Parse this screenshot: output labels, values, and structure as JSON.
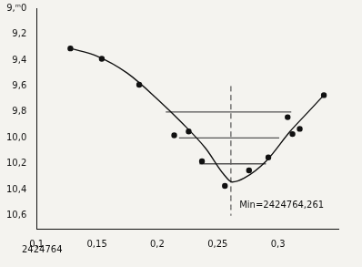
{
  "chart_data": {
    "type": "scatter",
    "xlabel": "2424764",
    "xlim": [
      0.1,
      0.35
    ],
    "xticks": [
      {
        "value": 0.1,
        "label": "0,1"
      },
      {
        "value": 0.15,
        "label": "0,15"
      },
      {
        "value": 0.2,
        "label": "0,2"
      },
      {
        "value": 0.25,
        "label": "0,25"
      },
      {
        "value": 0.3,
        "label": "0,3"
      }
    ],
    "ylim": [
      10.7,
      9.0
    ],
    "yticks": [
      {
        "value": 9.0,
        "label": "9,ᵐ0"
      },
      {
        "value": 9.2,
        "label": "9,2"
      },
      {
        "value": 9.4,
        "label": "9,4"
      },
      {
        "value": 9.6,
        "label": "9,6"
      },
      {
        "value": 9.8,
        "label": "9,8"
      },
      {
        "value": 10.0,
        "label": "10,0"
      },
      {
        "value": 10.2,
        "label": "10,2"
      },
      {
        "value": 10.4,
        "label": "10,4"
      },
      {
        "value": 10.6,
        "label": "10,6"
      }
    ],
    "grid": false,
    "series": [
      {
        "type": "scatter",
        "color": "#111111",
        "marker": "circle",
        "line_style": "none",
        "x": [
          0.128,
          0.154,
          0.185,
          0.214,
          0.226,
          0.237,
          0.256,
          0.276,
          0.292,
          0.308,
          0.312,
          0.318,
          0.338
        ],
        "values": [
          9.31,
          9.39,
          9.59,
          9.98,
          9.95,
          10.18,
          10.37,
          10.25,
          10.15,
          9.84,
          9.97,
          9.93,
          9.67
        ]
      },
      {
        "type": "line",
        "color": "#111111",
        "marker": "none",
        "line_style": "solid",
        "x": [
          0.128,
          0.15,
          0.175,
          0.2,
          0.22,
          0.24,
          0.255,
          0.262,
          0.272,
          0.29,
          0.31,
          0.325,
          0.338
        ],
        "values": [
          9.31,
          9.37,
          9.5,
          9.7,
          9.88,
          10.08,
          10.28,
          10.34,
          10.31,
          10.18,
          9.95,
          9.8,
          9.67
        ]
      },
      {
        "type": "line",
        "color": "#555555",
        "marker": "none",
        "line_style": "solid",
        "x": [
          0.207,
          0.311,
          0.311,
          0.218,
          0.301,
          0.301,
          0.235,
          0.29
        ],
        "values": [
          9.8,
          9.8,
          null,
          10.0,
          10.0,
          null,
          10.2,
          10.2
        ]
      },
      {
        "type": "line",
        "color": "#333333",
        "marker": "none",
        "line_style": "dashed",
        "x": [
          0.261,
          0.261
        ],
        "values": [
          9.6,
          10.6
        ]
      }
    ],
    "annotations": [
      {
        "text": "Min=2424764,261",
        "x": 0.268,
        "y": 10.52
      }
    ]
  }
}
